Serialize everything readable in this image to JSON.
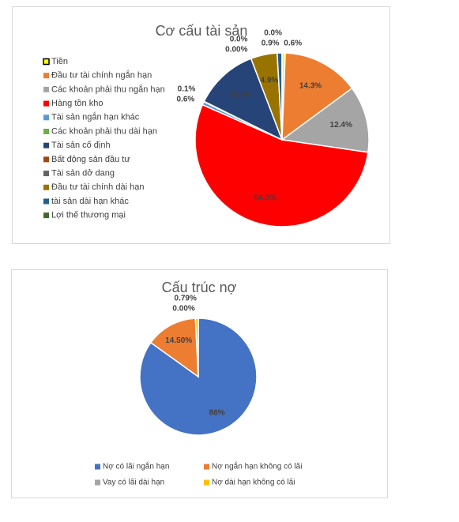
{
  "chart_data": [
    {
      "type": "pie",
      "title": "Cơ cấu tài sản",
      "legend": "left",
      "categories": [
        "Tiền",
        "Đầu tư tài chính ngắn hạn",
        "Các khoản phải thu ngắn hạn",
        "Hàng tồn kho",
        "Tài sản ngắn hạn khác",
        "Các khoản phải thu dài hạn",
        "Tài sản cố định",
        "Bất động sản đầu tư",
        "Tài sản dở dang",
        "Đầu tư tài chính dài hạn",
        "tài sản dài hạn khác",
        "Lợi thế thương mại"
      ],
      "values": [
        0.6,
        14.3,
        12.4,
        54.3,
        0.6,
        0.1,
        11.9,
        0,
        0,
        4.9,
        0.9,
        0
      ],
      "value_labels": [
        "0.6%",
        "14.3%",
        "12.4%",
        "54.3%",
        "0.6%",
        "0.1%",
        "11.9%",
        "0.00%",
        "0.0%",
        "4.9%",
        "0.9%",
        "0.0%"
      ],
      "colors": [
        "#ffff00",
        "#ed7d31",
        "#a5a5a5",
        "#ff0000",
        "#5b9bd5",
        "#70ad47",
        "#264478",
        "#9e480e",
        "#636363",
        "#997300",
        "#255e91",
        "#43682b"
      ]
    },
    {
      "type": "pie",
      "title": "Cấu trúc nợ",
      "legend": "bottom",
      "categories": [
        "Nợ có lãi ngắn hạn",
        "Nợ ngắn hạn không có lãi",
        "Vay  có lãi dài hạn",
        "Nợ dài hạn không có lãi"
      ],
      "values": [
        86,
        14.5,
        0,
        0.79
      ],
      "value_labels": [
        "86%",
        "14.50%",
        "0.00%",
        "0.79%"
      ],
      "colors": [
        "#4472c4",
        "#ed7d31",
        "#a5a5a5",
        "#ffc000"
      ]
    }
  ]
}
